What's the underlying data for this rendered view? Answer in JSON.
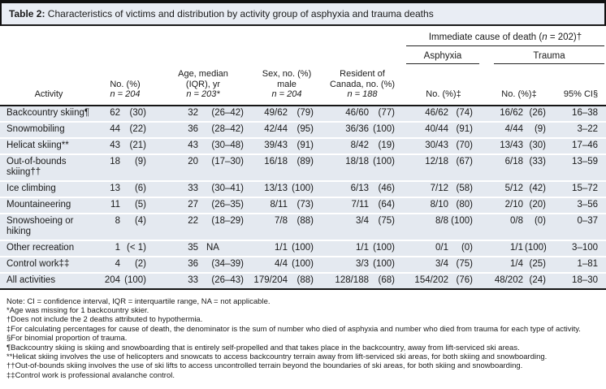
{
  "title": {
    "label": "Table 2:",
    "text": " Characteristics of victims and distribution by activity group of asphyxia and trauma deaths"
  },
  "spanner": {
    "cause_pre": "Immediate cause of death (",
    "cause_n": "n",
    "cause_post": " = 202)†",
    "asphyxia": "Asphyxia",
    "trauma": "Trauma"
  },
  "columns": {
    "activity": "Activity",
    "no": {
      "label": "No. (%)",
      "n": "n = 204"
    },
    "age": {
      "label": "Age, median\n(IQR), yr",
      "n": "n = 203*"
    },
    "sex": {
      "label": "Sex, no. (%)\nmale",
      "n": "n = 204"
    },
    "resident": {
      "label": "Resident of\nCanada, no. (%)",
      "n": "n = 188"
    },
    "asphyxia_no": "No. (%)‡",
    "trauma_no": "No. (%)‡",
    "ci": "95% CI§"
  },
  "rows": [
    [
      "Backcountry skiing¶",
      "62",
      "(30)",
      "32",
      "(26–42)",
      "49/62",
      "(79)",
      "46/60",
      "(77)",
      "46/62",
      "(74)",
      "16/62",
      "(26)",
      "16–38"
    ],
    [
      "Snowmobiling",
      "44",
      "(22)",
      "36",
      "(28–42)",
      "42/44",
      "(95)",
      "36/36",
      "(100)",
      "40/44",
      "(91)",
      "4/44",
      "(9)",
      "3–22"
    ],
    [
      "Helicat skiing**",
      "43",
      "(21)",
      "43",
      "(30–48)",
      "39/43",
      "(91)",
      "8/42",
      "(19)",
      "30/43",
      "(70)",
      "13/43",
      "(30)",
      "17–46"
    ],
    [
      "Out-of-bounds skiing††",
      "18",
      "(9)",
      "20",
      "(17–30)",
      "16/18",
      "(89)",
      "18/18",
      "(100)",
      "12/18",
      "(67)",
      "6/18",
      "(33)",
      "13–59"
    ],
    [
      "Ice climbing",
      "13",
      "(6)",
      "33",
      "(30–41)",
      "13/13",
      "(100)",
      "6/13",
      "(46)",
      "7/12",
      "(58)",
      "5/12",
      "(42)",
      "15–72"
    ],
    [
      "Mountaineering",
      "11",
      "(5)",
      "27",
      "(26–35)",
      "8/11",
      "(73)",
      "7/11",
      "(64)",
      "8/10",
      "(80)",
      "2/10",
      "(20)",
      "3–56"
    ],
    [
      "Snowshoeing or hiking",
      "8",
      "(4)",
      "22",
      "(18–29)",
      "7/8",
      "(88)",
      "3/4",
      "(75)",
      "8/8",
      "(100)",
      "0/8",
      "(0)",
      "0–37"
    ],
    [
      "Other recreation",
      "1",
      "(< 1)",
      "35",
      "NA",
      "1/1",
      "(100)",
      "1/1",
      "(100)",
      "0/1",
      "(0)",
      "1/1",
      "(100)",
      "3–100"
    ],
    [
      "Control work‡‡",
      "4",
      "(2)",
      "36",
      "(34–39)",
      "4/4",
      "(100)",
      "3/3",
      "(100)",
      "3/4",
      "(75)",
      "1/4",
      "(25)",
      "1–81"
    ],
    [
      "All activities",
      "204",
      "(100)",
      "33",
      "(26–43)",
      "179/204",
      "(88)",
      "128/188",
      "(68)",
      "154/202",
      "(76)",
      "48/202",
      "(24)",
      "18–30"
    ]
  ],
  "footnotes": [
    "Note: CI = confidence interval, IQR = interquartile range, NA = not applicable.",
    "*Age was missing for 1 backcountry skier.",
    "†Does not include the 2 deaths attributed to hypothermia.",
    "‡For calculating percentages for cause of death, the denominator is the sum of number who died of asphyxia and number who died from trauma for each type of activity.",
    "§For binomial proportion of trauma.",
    "¶Backcountry skiing is skiing and snowboarding that is entirely self-propelled and that takes place in the backcountry, away from lift-serviced ski areas.",
    "**Helicat skiing involves the use of helicopters and snowcats to access backcountry terrain away from lift-serviced ski areas, for both skiing and snowboarding.",
    "††Out-of-bounds skiing involves the use of ski lifts to access uncontrolled terrain beyond the boundaries of ski areas, for both skiing and snowboarding.",
    "‡‡Control work is professional avalanche control."
  ]
}
